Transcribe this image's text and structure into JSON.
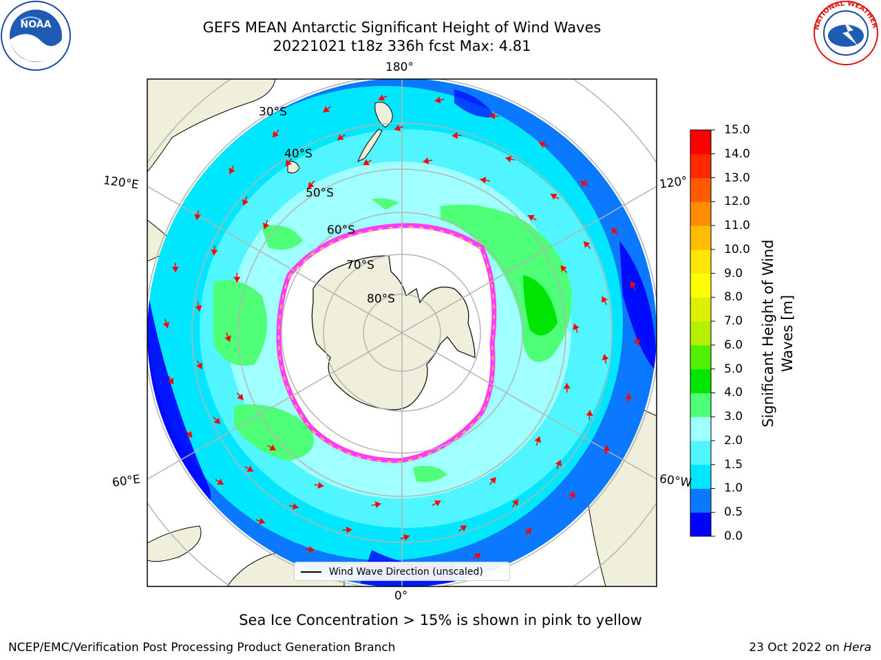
{
  "title": {
    "line1": "GEFS MEAN Antarctic Significant Height of Wind Waves",
    "line2": "20221021 t18z 336h fcst   Max: 4.81"
  },
  "meridian_labels": {
    "top": "180°",
    "bottom": "0°",
    "left_upper": "120°E",
    "left_lower": "60°E",
    "right_upper": "120°",
    "right_lower": "60°W"
  },
  "lat_labels": [
    "30°S",
    "40°S",
    "50°S",
    "60°S",
    "70°S",
    "80°S"
  ],
  "legend": {
    "label": "Wind Wave Direction (unscaled)"
  },
  "colorbar": {
    "label_line1": "Significant Height of Wind",
    "label_line2": "Waves [m]",
    "ticks": [
      "0.0",
      "0.5",
      "1.0",
      "1.5",
      "2.0",
      "3.0",
      "4.0",
      "5.0",
      "6.0",
      "7.0",
      "8.0",
      "9.0",
      "10.0",
      "11.0",
      "12.0",
      "13.0",
      "14.0",
      "15.0"
    ],
    "colors": [
      "#0000ff",
      "#0a78ff",
      "#00e6ff",
      "#50f5ff",
      "#a0ffff",
      "#50ff78",
      "#00e600",
      "#50f000",
      "#b4f000",
      "#dcf000",
      "#ffff00",
      "#ffe600",
      "#ffbe00",
      "#ff8c00",
      "#ff5a00",
      "#ff2800",
      "#ff0000"
    ]
  },
  "colors": {
    "land": "#efefdb",
    "ice_pink": "#ff3cff",
    "ice_yellow": "#ffc83c",
    "arrow": "#ff0000",
    "grid": "#b4b4b4"
  },
  "notes": {
    "sea_ice": "Sea Ice Concentration > 15% is shown in pink to yellow"
  },
  "footer": {
    "left": "NCEP/EMC/Verification Post Processing Product Generation Branch",
    "right_date": "23 Oct 2022 on",
    "right_host": "Hera"
  },
  "logos": {
    "noaa": "NOAA",
    "nws": "NATIONAL WEATHER SERVICE"
  }
}
